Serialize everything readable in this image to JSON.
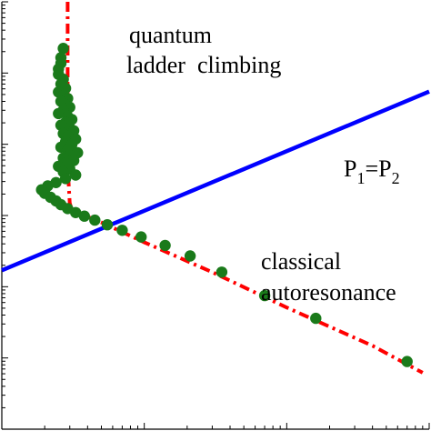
{
  "chart_data": {
    "type": "scatter",
    "xscale": "log",
    "yscale": "log",
    "xlim": [
      0.1,
      100
    ],
    "ylim": [
      0.001,
      1000
    ],
    "grid": false,
    "legend": "none",
    "annotations": {
      "quantum_line1": "quantum",
      "quantum_line2": "ladder  climbing",
      "classical_line1": "classical",
      "classical_line2": "autoresonance",
      "boundary_main": "P",
      "boundary_sub1": "1",
      "boundary_eq": "=P",
      "boundary_sub2": "2"
    },
    "series": [
      {
        "style": "line",
        "color": "#0000ff",
        "x": [
          0.1,
          100
        ],
        "y": [
          0.17,
          55
        ]
      },
      {
        "style": "dash-dot",
        "color": "#ff0000",
        "x": [
          0.29,
          0.29,
          0.29,
          0.29,
          0.3,
          0.31,
          0.5,
          1.0,
          3.0,
          10.0,
          40.0,
          90.0
        ],
        "y": [
          1000,
          200,
          30,
          5,
          1.5,
          1.2,
          0.8,
          0.42,
          0.16,
          0.051,
          0.0148,
          0.0062
        ]
      },
      {
        "style": "points",
        "color": "#1a7a1a",
        "x": [
          0.27,
          0.26,
          0.26,
          0.25,
          0.25,
          0.27,
          0.26,
          0.28,
          0.25,
          0.27,
          0.29,
          0.26,
          0.28,
          0.3,
          0.27,
          0.25,
          0.29,
          0.31,
          0.28,
          0.26,
          0.3,
          0.32,
          0.27,
          0.29,
          0.33,
          0.28,
          0.31,
          0.26,
          0.29,
          0.34,
          0.3,
          0.27,
          0.32,
          0.28,
          0.25,
          0.3,
          0.27,
          0.33,
          0.28,
          0.24,
          0.21,
          0.19,
          0.2,
          0.22,
          0.24,
          0.26,
          0.29,
          0.33,
          0.38,
          0.45,
          0.55,
          0.7,
          0.95,
          1.4,
          2.1,
          3.5,
          7.0,
          16.0,
          70.0
        ],
        "y": [
          222,
          164,
          137,
          114,
          96,
          82,
          70,
          61,
          54,
          48,
          44,
          40,
          36,
          33,
          30,
          27,
          24.6,
          22.3,
          20.3,
          18.5,
          17,
          15.5,
          14.1,
          12.9,
          11.8,
          10.8,
          9.9,
          9.1,
          8.3,
          7.6,
          7,
          6.4,
          5.9,
          5.4,
          4.9,
          4.5,
          4.1,
          3.7,
          3.3,
          2.9,
          2.6,
          2.3,
          2.05,
          1.8,
          1.6,
          1.42,
          1.25,
          1.1,
          0.98,
          0.86,
          0.74,
          0.62,
          0.5,
          0.38,
          0.27,
          0.16,
          0.075,
          0.036,
          0.0089
        ]
      }
    ]
  }
}
